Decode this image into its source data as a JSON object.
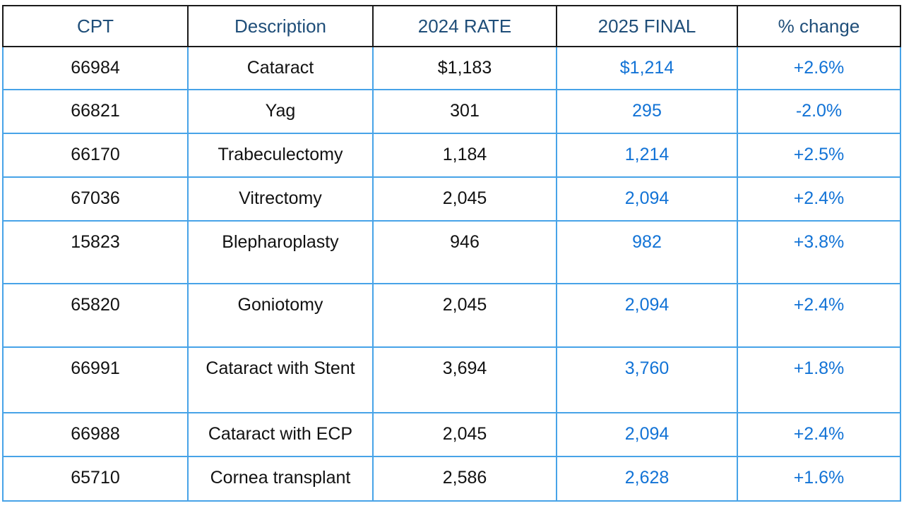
{
  "table": {
    "headers": {
      "cpt": "CPT",
      "description": "Description",
      "rate_2024": "2024 RATE",
      "final_2025": "2025 FINAL",
      "pct_change": "% change"
    },
    "rows": [
      {
        "cpt": "66984",
        "description": "Cataract",
        "rate_2024": "$1,183",
        "final_2025": "$1,214",
        "pct_change": "+2.6%"
      },
      {
        "cpt": "66821",
        "description": "Yag",
        "rate_2024": "301",
        "final_2025": "295",
        "pct_change": "-2.0%"
      },
      {
        "cpt": "66170",
        "description": "Trabeculectomy",
        "rate_2024": "1,184",
        "final_2025": "1,214",
        "pct_change": "+2.5%"
      },
      {
        "cpt": "67036",
        "description": "Vitrectomy",
        "rate_2024": "2,045",
        "final_2025": "2,094",
        "pct_change": "+2.4%"
      },
      {
        "cpt": "15823",
        "description": "Blepharoplasty",
        "rate_2024": "946",
        "final_2025": "982",
        "pct_change": "+3.8%"
      },
      {
        "cpt": "65820",
        "description": "Goniotomy",
        "rate_2024": "2,045",
        "final_2025": "2,094",
        "pct_change": "+2.4%"
      },
      {
        "cpt": "66991",
        "description": "Cataract with Stent",
        "rate_2024": "3,694",
        "final_2025": "3,760",
        "pct_change": "+1.8%"
      },
      {
        "cpt": "66988",
        "description": "Cataract with ECP",
        "rate_2024": "2,045",
        "final_2025": "2,094",
        "pct_change": "+2.4%"
      },
      {
        "cpt": "65710",
        "description": "Cornea transplant",
        "rate_2024": "2,586",
        "final_2025": "2,628",
        "pct_change": "+1.6%"
      }
    ]
  },
  "colors": {
    "header_text": "#1F4E79",
    "highlight_text": "#1273D6",
    "body_border": "#47A3E8",
    "header_border": "#1A1A1A"
  }
}
